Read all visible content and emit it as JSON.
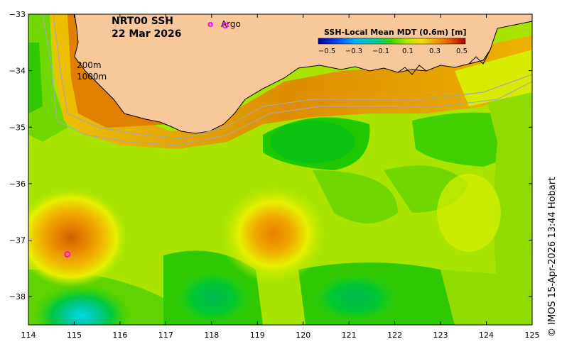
{
  "title": {
    "line1": "NRT00 SSH",
    "line2": "22 Mar 2026"
  },
  "argo_legend": {
    "symbol": "o",
    "label": "Argo",
    "color": "#ff00ff"
  },
  "depth_labels": [
    "200m",
    "1000m"
  ],
  "colorbar": {
    "title": "SSH-Local Mean MDT (0.6m) [m]",
    "ticks": [
      "−0.5",
      "−0.3",
      "−0.1",
      "0.1",
      "0.3",
      "0.5"
    ],
    "colors": [
      "#00008f",
      "#0050ff",
      "#00c8ff",
      "#00d084",
      "#7fe000",
      "#e8f000",
      "#f0a000",
      "#e06000",
      "#a80000"
    ]
  },
  "axes": {
    "x_ticks": [
      "114",
      "115",
      "116",
      "117",
      "118",
      "119",
      "120",
      "121",
      "122",
      "123",
      "124",
      "125"
    ],
    "y_ticks": [
      "−33",
      "−34",
      "−35",
      "−36",
      "−37",
      "−38"
    ],
    "xlim": [
      114,
      125
    ],
    "ylim": [
      -38.5,
      -33
    ]
  },
  "credit": "© IMOS 15-Apr-2026 13:44 Hobart",
  "argo_floats": [
    {
      "lon": 114.85,
      "lat": -37.25
    },
    {
      "lon": 118.3,
      "lat": -33.2
    }
  ],
  "colors": {
    "land": "#f9c89a",
    "coast": "#000000",
    "isobath": "#a8a8a8",
    "argo": "#ff00ff"
  }
}
